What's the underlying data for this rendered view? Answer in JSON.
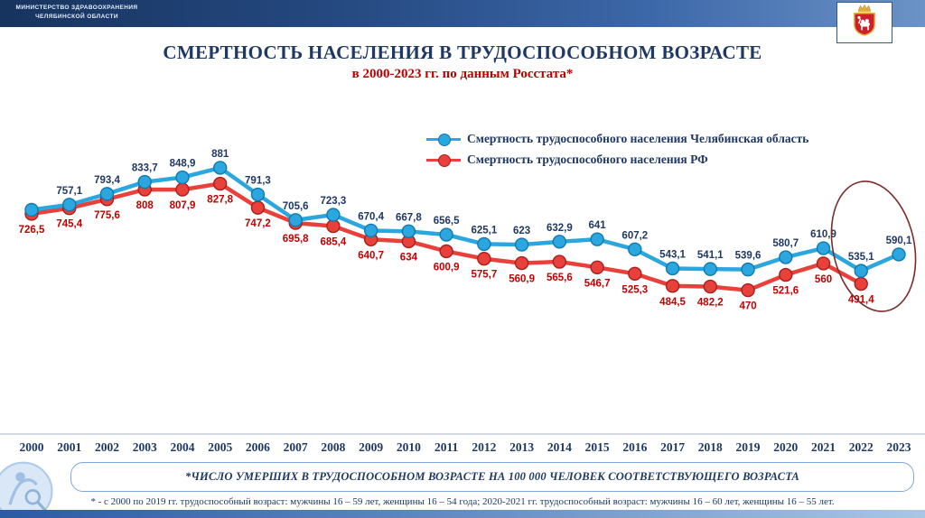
{
  "header": {
    "ministry_line1": "МИНИСТЕРСТВО ЗДРАВООХРАНЕНИЯ",
    "ministry_line2": "ЧЕЛЯБИНСКОЙ ОБЛАСТИ"
  },
  "title": {
    "main": "СМЕРТНОСТЬ НАСЕЛЕНИЯ В ТРУДОСПОСОБНОМ ВОЗРАСТЕ",
    "subtitle": "в 2000-2023 гг. по данным Росстата*"
  },
  "chart_data": {
    "type": "line",
    "title": "СМЕРТНОСТЬ НАСЕЛЕНИЯ В ТРУДОСПОСОБНОМ ВОЗРАСТЕ в 2000-2023 гг. по данным Росстата",
    "x": [
      "2000",
      "2001",
      "2002",
      "2003",
      "2004",
      "2005",
      "2006",
      "2007",
      "2008",
      "2009",
      "2010",
      "2011",
      "2012",
      "2013",
      "2014",
      "2015",
      "2016",
      "2017",
      "2018",
      "2019",
      "2020",
      "2021",
      "2022",
      "2023"
    ],
    "ylim": [
      455,
      890
    ],
    "grid": false,
    "legend_position": "top-right",
    "series": [
      {
        "name": "Смертность трудоспособного населения Челябинская область",
        "color": "#2BA6DE",
        "dot_stroke": "#1179AE",
        "label_color": "#1F3864",
        "label_position": "above",
        "values": [
          740,
          757.1,
          793.4,
          833.7,
          848.9,
          881,
          791.3,
          705.6,
          723.3,
          670.4,
          667.8,
          656.5,
          625.1,
          623,
          632.9,
          641,
          607.2,
          543.1,
          541.1,
          539.6,
          580.7,
          610.9,
          535.1,
          590.1
        ],
        "labels": [
          "",
          "757,1",
          "793,4",
          "833,7",
          "848,9",
          "881",
          "791,3",
          "705,6",
          "723,3",
          "670,4",
          "667,8",
          "656,5",
          "625,1",
          "623",
          "632,9",
          "641",
          "607,2",
          "543,1",
          "541,1",
          "539,6",
          "580,7",
          "610,9",
          "535,1",
          "590,1"
        ]
      },
      {
        "name": "Смертность трудоспособного населения РФ",
        "color": "#E8403A",
        "dot_stroke": "#A8201C",
        "label_color": "#C00000",
        "label_position": "below",
        "values": [
          726.5,
          745.4,
          775.6,
          808,
          807.9,
          827.8,
          747.2,
          695.8,
          685.4,
          640.7,
          634,
          600.9,
          575.7,
          560.9,
          565.6,
          546.7,
          525.3,
          484.5,
          482.2,
          470,
          521.6,
          560,
          491.4,
          null
        ],
        "labels": [
          "726,5",
          "745,4",
          "775,6",
          "808",
          "807,9",
          "827,8",
          "747,2",
          "695,8",
          "685,4",
          "640,7",
          "634",
          "600,9",
          "575,7",
          "560,9",
          "565,6",
          "546,7",
          "525,3",
          "484,5",
          "482,2",
          "470",
          "521,6",
          "560",
          "491,4",
          ""
        ]
      }
    ],
    "annotation": {
      "type": "ellipse",
      "around_years": [
        "2022",
        "2023"
      ],
      "color": "#7D2B2B"
    }
  },
  "footnotes": {
    "line1": "*ЧИСЛО УМЕРШИХ В ТРУДОСПОСОБНОМ ВОЗРАСТЕ НА 100 000 ЧЕЛОВЕК СООТВЕТСТВУЮЩЕГО ВОЗРАСТА",
    "line2": "* - с 2000 по 2019 гг. трудоспособный возраст: мужчины 16 – 59 лет, женщины 16 – 54 года; 2020-2021 гг. трудоспособный возраст: мужчины 16 – 60 лет, женщины 16 – 55 лет."
  }
}
